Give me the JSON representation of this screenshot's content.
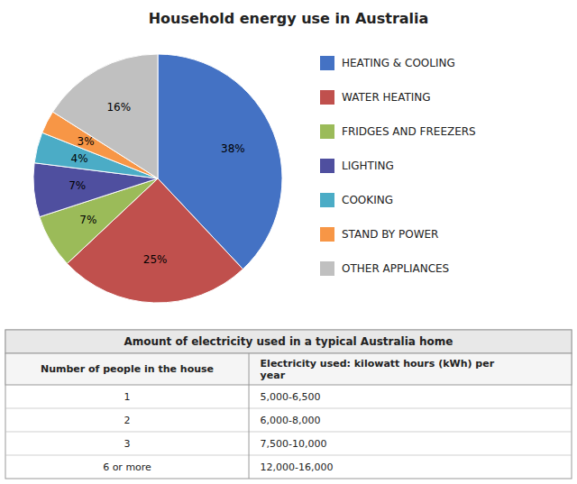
{
  "chart_data": [
    {
      "type": "pie",
      "title": "Household energy use in Australia",
      "categories": [
        "HEATING & COOLING",
        "WATER HEATING",
        "FRIDGES AND FREEZERS",
        "LIGHTING",
        "COOKING",
        "STAND BY POWER",
        "OTHER APPLIANCES"
      ],
      "values": [
        38,
        25,
        7,
        7,
        4,
        3,
        16
      ],
      "value_labels": [
        "38%",
        "25%",
        "7%",
        "7%",
        "4%",
        "3%",
        "16%"
      ],
      "colors": [
        "#4472C4",
        "#C0504D",
        "#9BBB59",
        "#4F4F9F",
        "#4BACC6",
        "#F79646",
        "#C0C0C0"
      ],
      "data_labels": true
    },
    {
      "type": "table",
      "title": "Amount of electricity used in a typical Australia home",
      "columns": [
        "Number of people in the house",
        "Electricity used: kilowatt hours (kWh) per\nyear"
      ],
      "rows": [
        [
          "1",
          "5,000-6,500"
        ],
        [
          "2",
          "6,000-8,000"
        ],
        [
          "3",
          "7,500-10,000"
        ],
        [
          "6 or more",
          "12,000-16,000"
        ]
      ]
    }
  ]
}
